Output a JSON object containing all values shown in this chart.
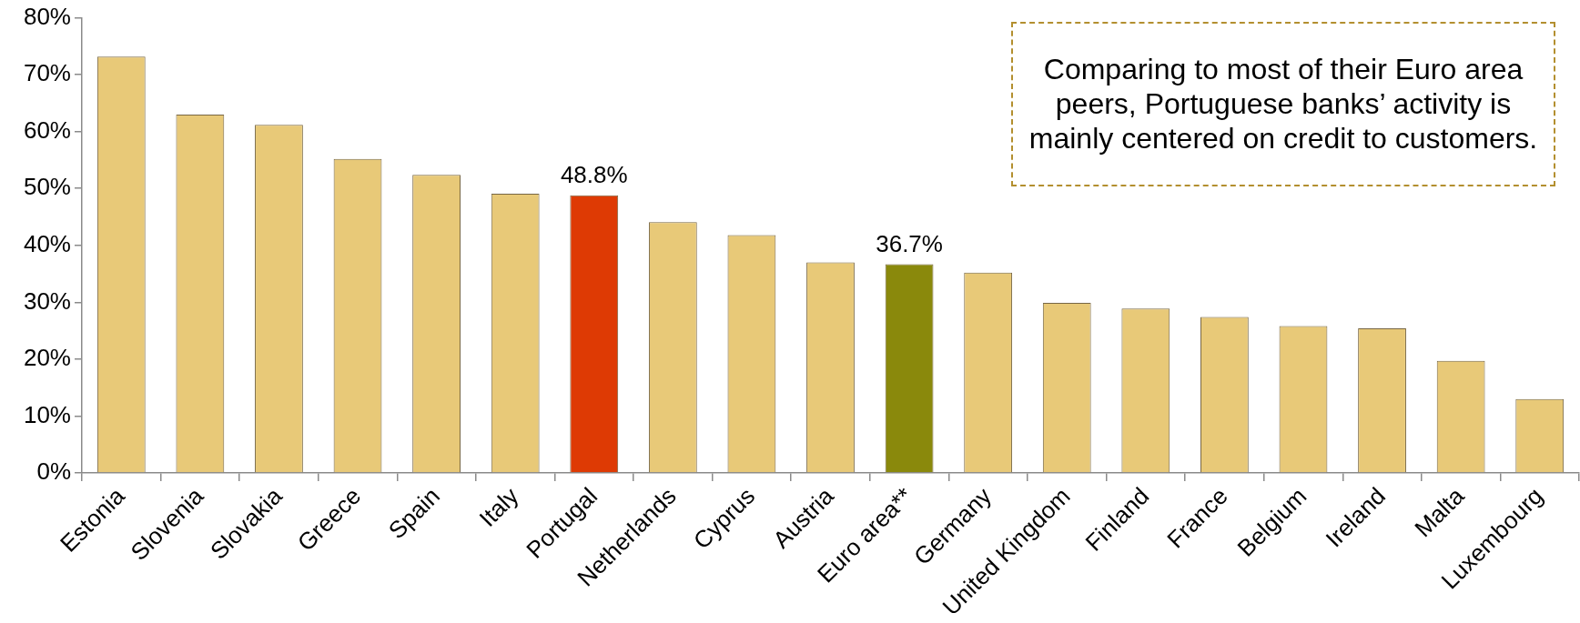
{
  "chart_data": {
    "type": "bar",
    "categories": [
      "Estonia",
      "Slovenia",
      "Slovakia",
      "Greece",
      "Spain",
      "Italy",
      "Portugal",
      "Netherlands",
      "Cyprus",
      "Austria",
      "Euro area**",
      "Germany",
      "United Kingdom",
      "Finland",
      "France",
      "Belgium",
      "Ireland",
      "Malta",
      "Luxembourg"
    ],
    "values": [
      73.2,
      63.0,
      61.2,
      55.2,
      52.4,
      49.1,
      48.8,
      44.1,
      41.8,
      37.0,
      36.7,
      35.2,
      29.9,
      28.9,
      27.4,
      25.8,
      25.4,
      19.7,
      13.0
    ],
    "colors": [
      "#e8c978",
      "#e8c978",
      "#e8c978",
      "#e8c978",
      "#e8c978",
      "#e8c978",
      "#de3a04",
      "#e8c978",
      "#e8c978",
      "#e8c978",
      "#8a890c",
      "#e8c978",
      "#e8c978",
      "#e8c978",
      "#e8c978",
      "#e8c978",
      "#e8c978",
      "#e8c978",
      "#e8c978"
    ],
    "value_labels": [
      null,
      null,
      null,
      null,
      null,
      null,
      "48.8%",
      null,
      null,
      null,
      "36.7%",
      null,
      null,
      null,
      null,
      null,
      null,
      null,
      null
    ],
    "ylim": [
      0,
      80
    ],
    "yticks": [
      {
        "value": 0,
        "label": "0%"
      },
      {
        "value": 10,
        "label": "10%"
      },
      {
        "value": 20,
        "label": "20%"
      },
      {
        "value": 30,
        "label": "30%"
      },
      {
        "value": 40,
        "label": "40%"
      },
      {
        "value": 50,
        "label": "50%"
      },
      {
        "value": 60,
        "label": "60%"
      },
      {
        "value": 70,
        "label": "70%"
      },
      {
        "value": 80,
        "label": "80%"
      }
    ],
    "annotations": [
      "Comparing to most of their Euro area peers, Portuguese banks’ activity is mainly centered on credit to customers."
    ]
  }
}
